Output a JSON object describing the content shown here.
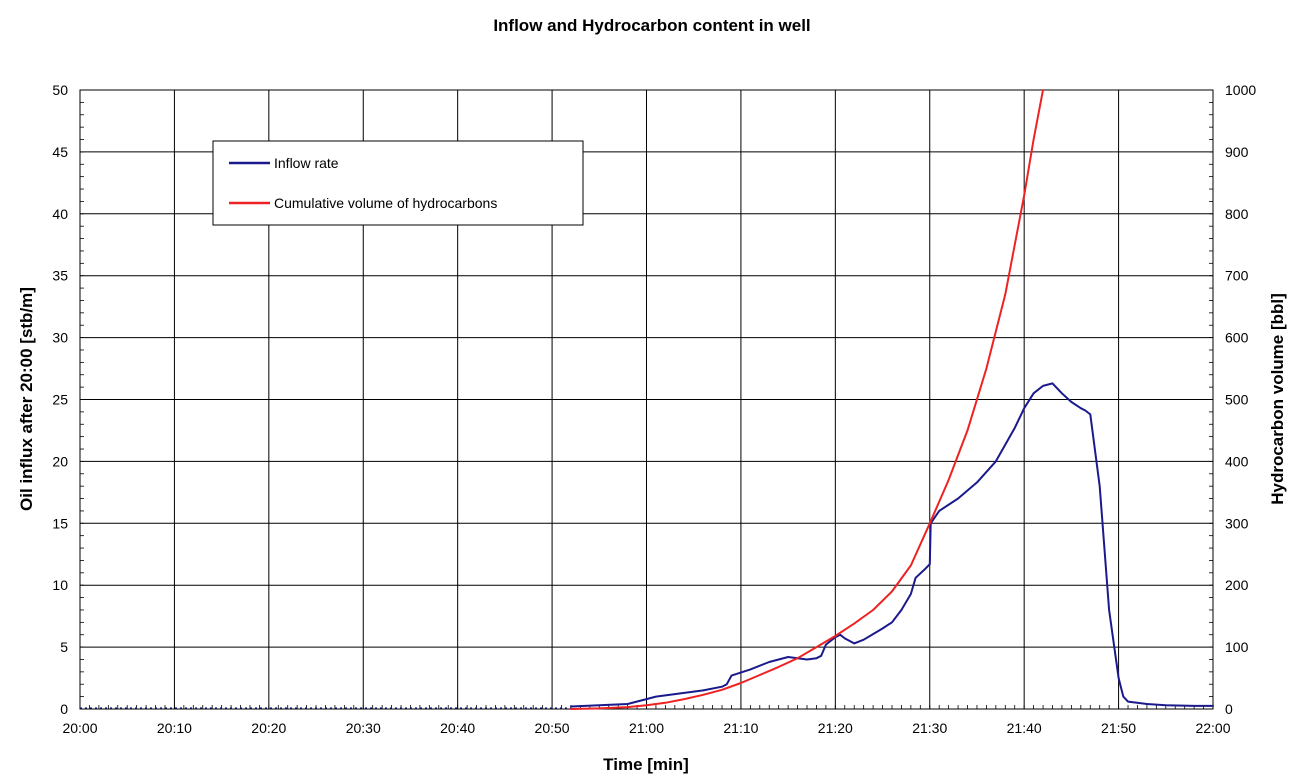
{
  "chart_data": {
    "type": "line",
    "title": "Inflow and Hydrocarbon content in well",
    "xlabel": "Time [min]",
    "ylabel_left": "Oil influx after 20:00 [stb/m]",
    "ylabel_right": "Hydrocarbon volume [bbl]",
    "x_unit": "minutes after 20:00",
    "xlim": [
      0,
      120
    ],
    "ylim_left": [
      0,
      50
    ],
    "ylim_right": [
      0,
      1000
    ],
    "x_ticks": [
      0,
      10,
      20,
      30,
      40,
      50,
      60,
      70,
      80,
      90,
      100,
      110,
      120
    ],
    "x_tick_labels": [
      "20:00",
      "20:10",
      "20:20",
      "20:30",
      "20:40",
      "20:50",
      "21:00",
      "21:10",
      "21:20",
      "21:30",
      "21:40",
      "21:50",
      "22:00"
    ],
    "y_left_ticks": [
      0,
      5,
      10,
      15,
      20,
      25,
      30,
      35,
      40,
      45,
      50
    ],
    "y_right_ticks": [
      0,
      100,
      200,
      300,
      400,
      500,
      600,
      700,
      800,
      900,
      1000
    ],
    "grid": true,
    "legend_position": "top-left",
    "series": [
      {
        "name": "Inflow rate",
        "axis": "left",
        "color": "#1a1a8c",
        "x": [
          52,
          55,
          58,
          60,
          61,
          63,
          66,
          68,
          68.5,
          69,
          71,
          73,
          75,
          77,
          78,
          78.5,
          79,
          80,
          80.5,
          81,
          82,
          83,
          85,
          86,
          87,
          88,
          88.5,
          89.5,
          90,
          90.1,
          91,
          93,
          95,
          97,
          99,
          100,
          101,
          102,
          103,
          104,
          105,
          106,
          106.5,
          107,
          108,
          109,
          110,
          110.5,
          111,
          113,
          115,
          118,
          120
        ],
        "y": [
          0.2,
          0.3,
          0.4,
          0.8,
          1.0,
          1.2,
          1.5,
          1.8,
          2.0,
          2.7,
          3.2,
          3.8,
          4.2,
          4.0,
          4.1,
          4.3,
          5.2,
          5.8,
          6.0,
          5.7,
          5.3,
          5.6,
          6.5,
          7.0,
          8.0,
          9.3,
          10.6,
          11.3,
          11.7,
          15.0,
          16.0,
          17.0,
          18.3,
          20.0,
          22.7,
          24.3,
          25.5,
          26.1,
          26.3,
          25.5,
          24.8,
          24.3,
          24.1,
          23.8,
          18.0,
          8.0,
          2.5,
          1.0,
          0.6,
          0.4,
          0.3,
          0.25,
          0.25
        ]
      },
      {
        "name": "Cumulative volume of hydrocarbons",
        "axis": "right",
        "color": "#ee2222",
        "x": [
          52,
          55,
          58,
          60,
          62,
          64,
          66,
          68,
          70,
          72,
          74,
          76,
          78,
          80,
          82,
          84,
          86,
          88,
          90,
          92,
          94,
          96,
          98,
          100,
          101,
          102
        ],
        "y": [
          0,
          1,
          3,
          6,
          10,
          16,
          23,
          31,
          42,
          55,
          68,
          82,
          100,
          118,
          138,
          160,
          190,
          232,
          300,
          370,
          450,
          550,
          670,
          830,
          920,
          1000
        ]
      }
    ]
  }
}
